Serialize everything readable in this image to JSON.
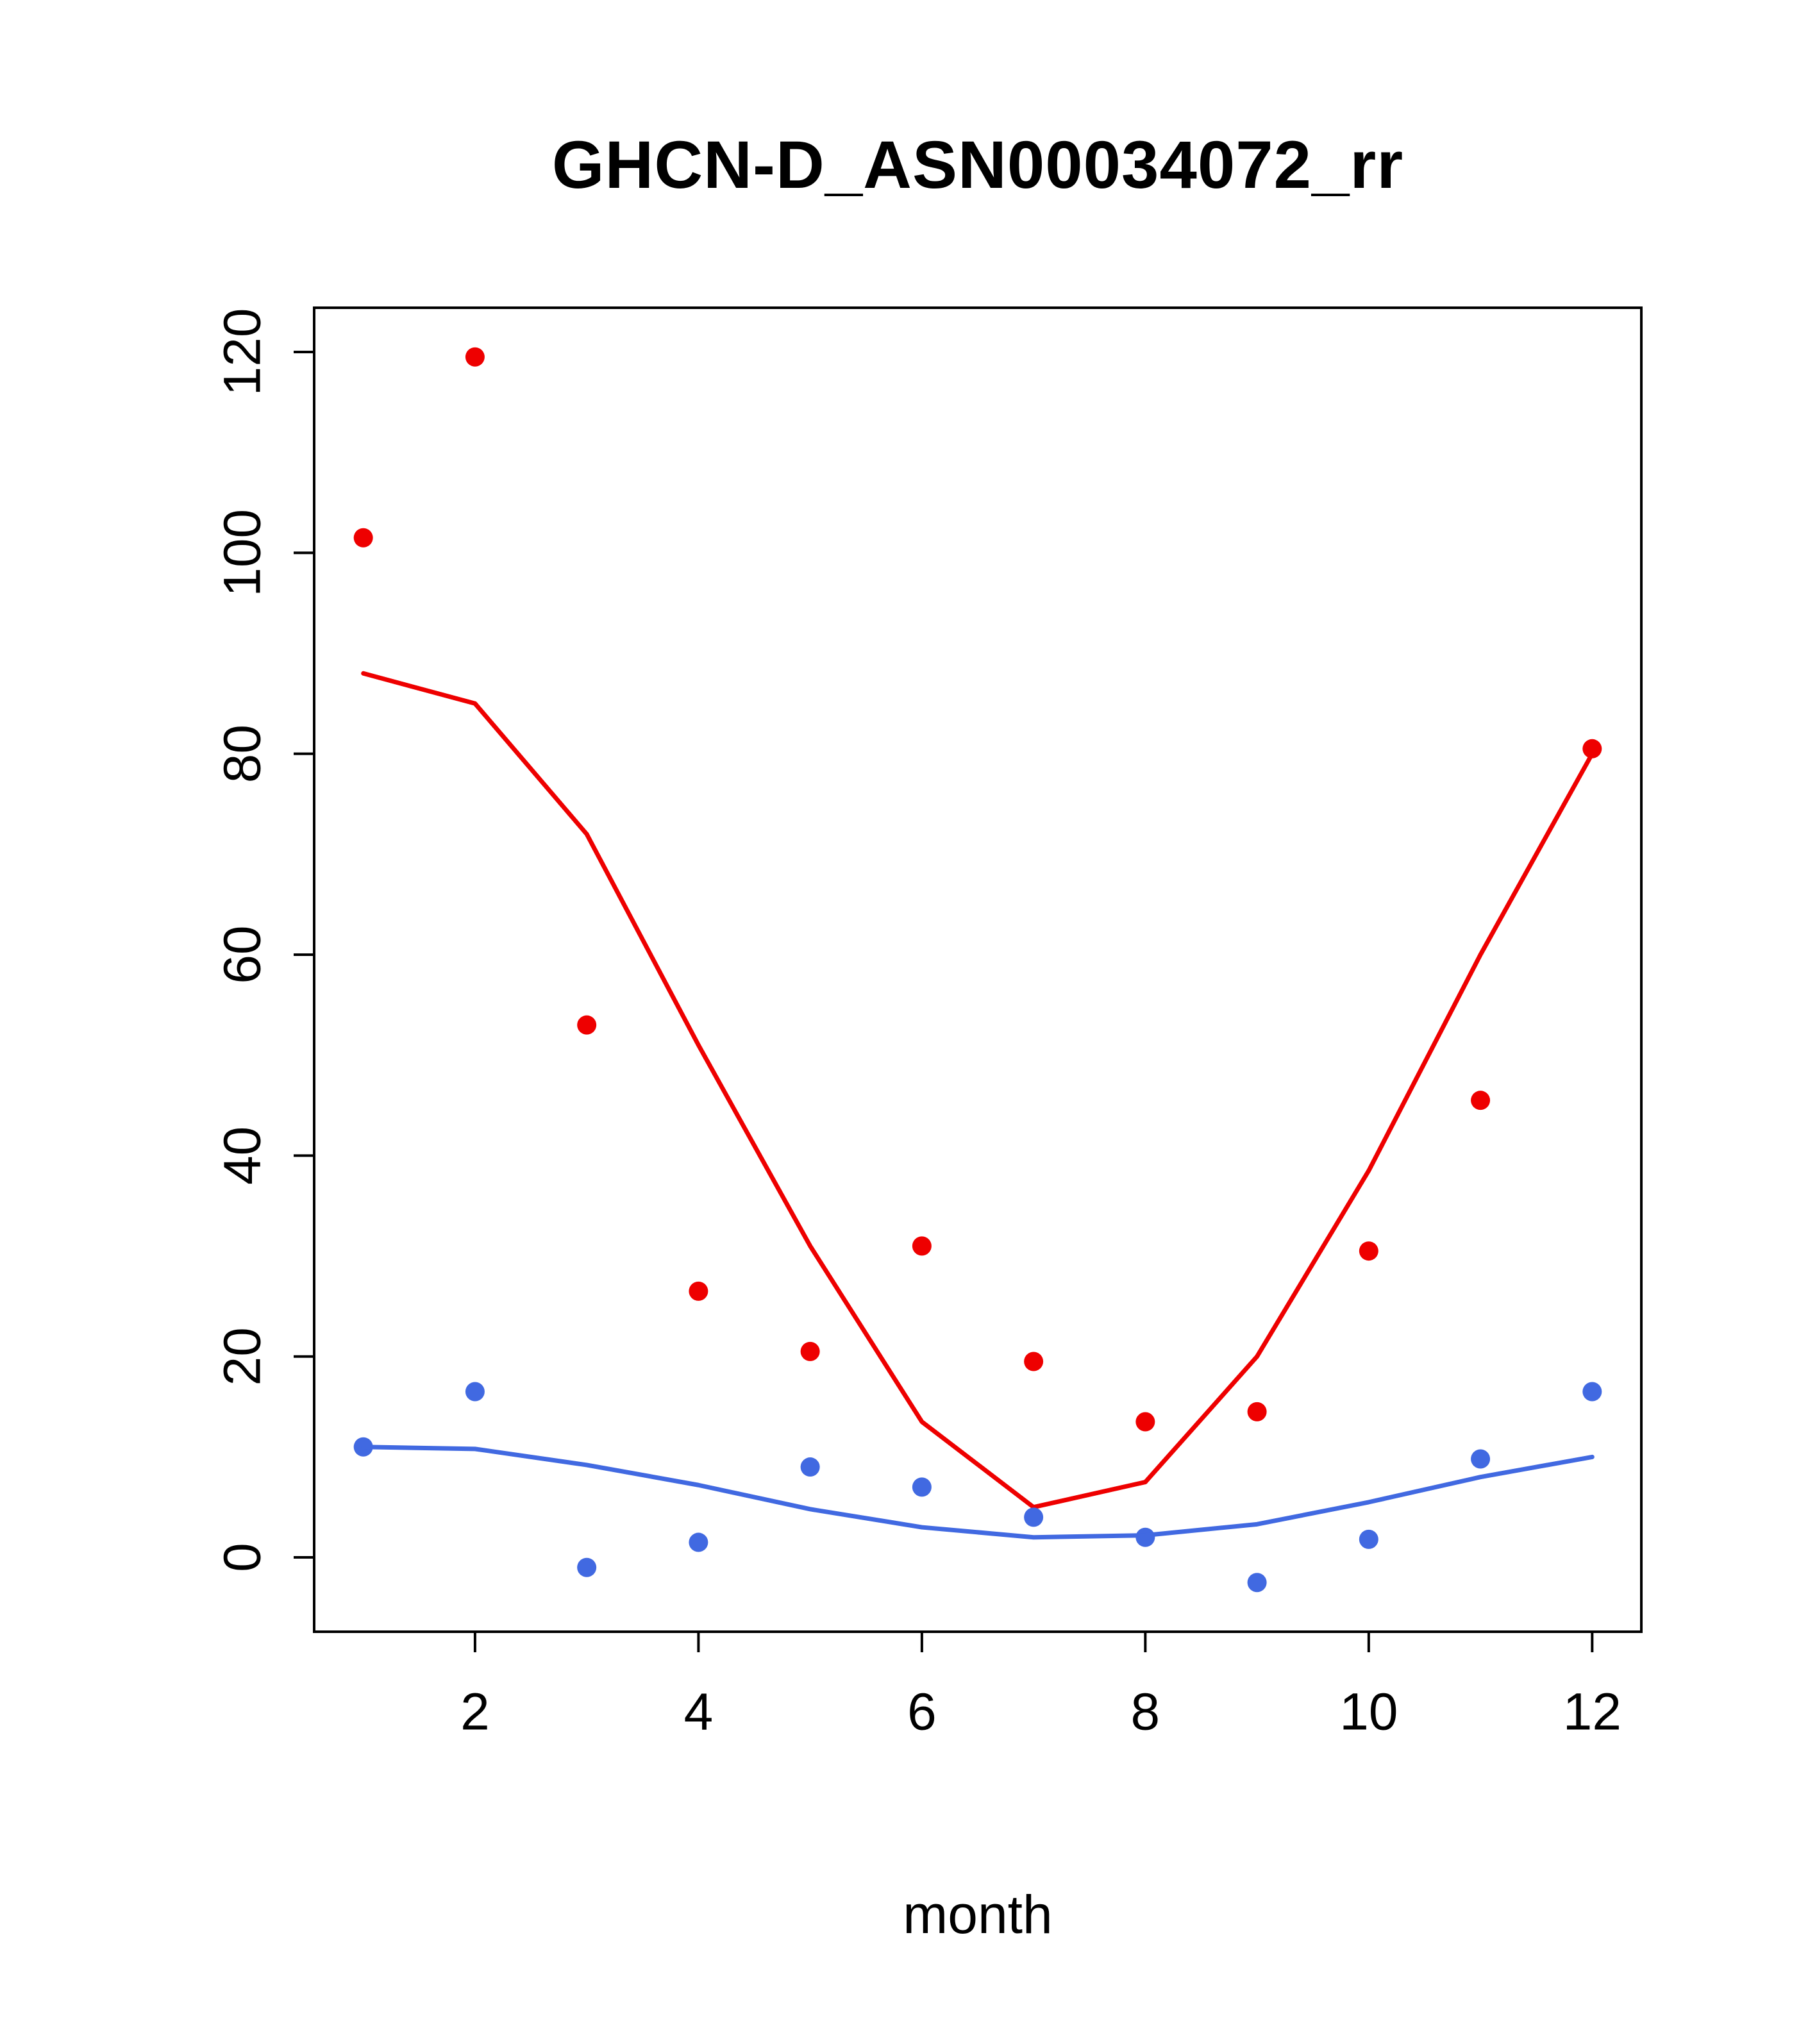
{
  "chart_data": {
    "type": "line",
    "title": "GHCN-D_ASN00034072_rr",
    "xlabel": "month",
    "ylabel": "",
    "x": [
      1,
      2,
      3,
      4,
      5,
      6,
      7,
      8,
      9,
      10,
      11,
      12
    ],
    "xlim": [
      0.56,
      12.44
    ],
    "ylim": [
      -7.4,
      124.4
    ],
    "x_ticks": [
      2,
      4,
      6,
      8,
      10,
      12
    ],
    "y_ticks": [
      0,
      20,
      40,
      60,
      80,
      100,
      120
    ],
    "grid": false,
    "legend": "none",
    "colors": {
      "red": "#EE0000",
      "blue": "#4169E1",
      "axis": "#000000",
      "background": "#FFFFFF"
    },
    "series": [
      {
        "name": "red-points",
        "style": "points",
        "color": "#EE0000",
        "values": [
          101.5,
          119.5,
          53,
          26.5,
          20.5,
          31,
          19.5,
          13.5,
          14.5,
          30.5,
          45.5,
          80.5
        ]
      },
      {
        "name": "red-trend-line",
        "style": "line",
        "color": "#EE0000",
        "values": [
          88,
          85,
          72,
          51,
          31,
          13.5,
          5,
          7.5,
          20,
          38.5,
          60,
          80
        ]
      },
      {
        "name": "blue-points",
        "style": "points",
        "color": "#4169E1",
        "values": [
          11,
          16.5,
          -1,
          1.5,
          9,
          7,
          4,
          2,
          -2.5,
          1.8,
          9.8,
          16.5
        ]
      },
      {
        "name": "blue-trend-line",
        "style": "line",
        "color": "#4169E1",
        "values": [
          11,
          10.8,
          9.2,
          7.2,
          4.8,
          3,
          2,
          2.2,
          3.3,
          5.5,
          8,
          10
        ]
      }
    ]
  }
}
